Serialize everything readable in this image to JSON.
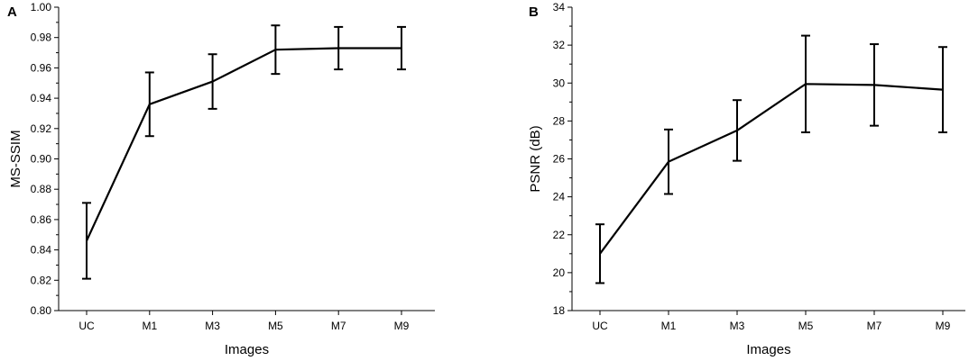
{
  "chart_data": [
    {
      "type": "line",
      "panel_label": "A",
      "xlabel": "Images",
      "ylabel": "MS-SSIM",
      "categories": [
        "UC",
        "M1",
        "M3",
        "M5",
        "M7",
        "M9"
      ],
      "values": [
        0.846,
        0.936,
        0.951,
        0.972,
        0.973,
        0.973
      ],
      "errors": [
        0.025,
        0.021,
        0.018,
        0.016,
        0.014,
        0.014
      ],
      "ylim": [
        0.8,
        1.0
      ],
      "yticks": [
        "0.80",
        "0.82",
        "0.84",
        "0.86",
        "0.88",
        "0.90",
        "0.92",
        "0.94",
        "0.96",
        "0.98",
        "1.00"
      ],
      "grid": false
    },
    {
      "type": "line",
      "panel_label": "B",
      "xlabel": "Images",
      "ylabel": "PSNR (dB)",
      "categories": [
        "UC",
        "M1",
        "M3",
        "M5",
        "M7",
        "M9"
      ],
      "values": [
        21.0,
        25.85,
        27.5,
        29.95,
        29.9,
        29.65
      ],
      "errors": [
        1.55,
        1.7,
        1.6,
        2.55,
        2.15,
        2.25
      ],
      "ylim": [
        18,
        34
      ],
      "yticks": [
        "18",
        "20",
        "22",
        "24",
        "26",
        "28",
        "30",
        "32",
        "34"
      ],
      "grid": false
    }
  ]
}
